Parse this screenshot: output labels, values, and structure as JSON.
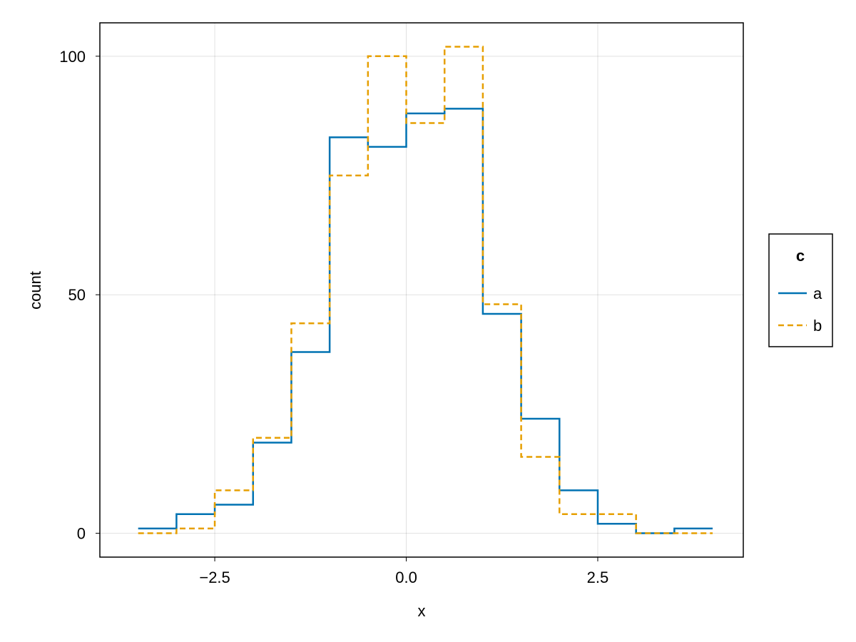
{
  "chart_data": {
    "type": "line",
    "subtype": "step-histogram",
    "title": "",
    "xlabel": "x",
    "ylabel": "count",
    "xlim": [
      -4.0,
      4.4
    ],
    "ylim": [
      -5,
      107
    ],
    "xticks": [
      -2.5,
      0.0,
      2.5
    ],
    "xtick_labels": [
      "−2.5",
      "0.0",
      "2.5"
    ],
    "yticks": [
      0,
      50,
      100
    ],
    "ytick_labels": [
      "0",
      "50",
      "100"
    ],
    "grid": true,
    "bin_edges": [
      -3.5,
      -3.0,
      -2.5,
      -2.0,
      -1.5,
      -1.0,
      -0.5,
      0.0,
      0.5,
      1.0,
      1.5,
      2.0,
      2.5,
      3.0,
      3.5,
      4.0
    ],
    "legend": {
      "title": "c",
      "placement": "right"
    },
    "series": [
      {
        "name": "a",
        "color": "#0072b2",
        "dash": "solid",
        "values": [
          1,
          4,
          6,
          19,
          38,
          83,
          81,
          88,
          89,
          46,
          24,
          9,
          2,
          0,
          1
        ]
      },
      {
        "name": "b",
        "color": "#e69f00",
        "dash": "dashed",
        "values": [
          0,
          1,
          9,
          20,
          44,
          75,
          100,
          86,
          102,
          48,
          16,
          4,
          4,
          0,
          0
        ]
      }
    ]
  }
}
